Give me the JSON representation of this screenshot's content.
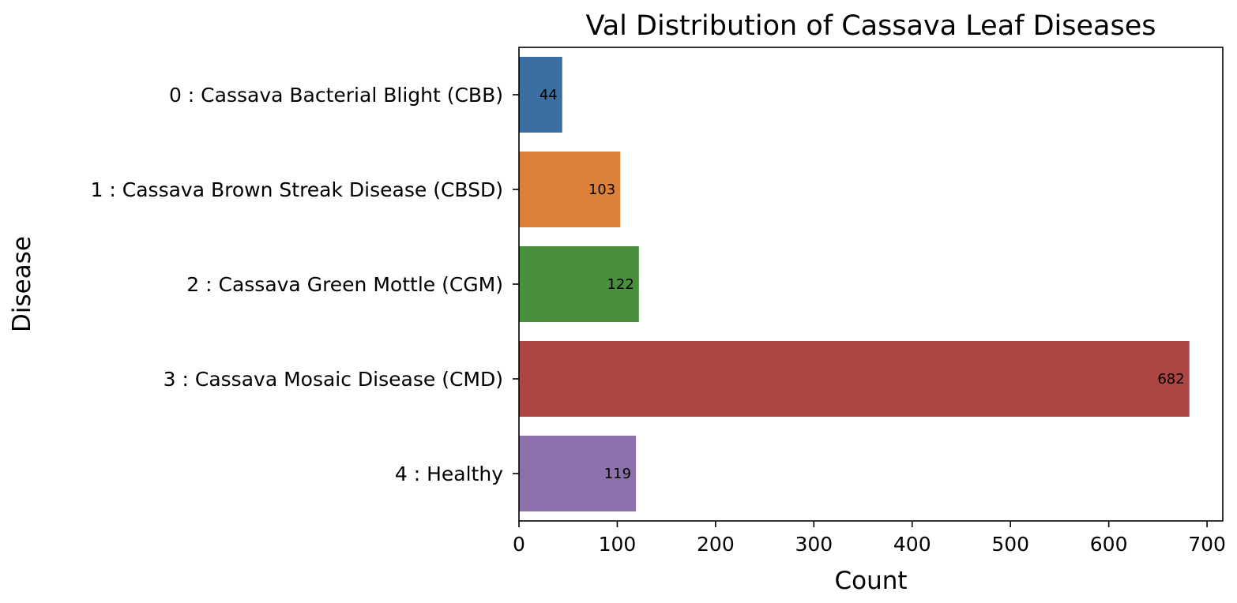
{
  "chart_data": {
    "type": "bar",
    "orientation": "horizontal",
    "title": "Val Distribution of Cassava Leaf Diseases",
    "xlabel": "Count",
    "ylabel": "Disease",
    "categories": [
      "0 : Cassava Bacterial Blight (CBB)",
      "1 : Cassava Brown Streak Disease (CBSD)",
      "2 : Cassava Green Mottle (CGM)",
      "3 : Cassava Mosaic Disease (CMD)",
      "4 : Healthy"
    ],
    "values": [
      44,
      103,
      122,
      682,
      119
    ],
    "data_labels": [
      "44",
      "103",
      "122",
      "682",
      "119"
    ],
    "colors": [
      "#3a6f9f",
      "#dd8038",
      "#4a8f3e",
      "#ad4542",
      "#8c71ad"
    ],
    "xlim": [
      0,
      716
    ],
    "xticks": [
      0,
      100,
      200,
      300,
      400,
      500,
      600,
      700
    ],
    "xtick_labels": [
      "0",
      "100",
      "200",
      "300",
      "400",
      "500",
      "600",
      "700"
    ],
    "grid": false,
    "legend": "none"
  }
}
